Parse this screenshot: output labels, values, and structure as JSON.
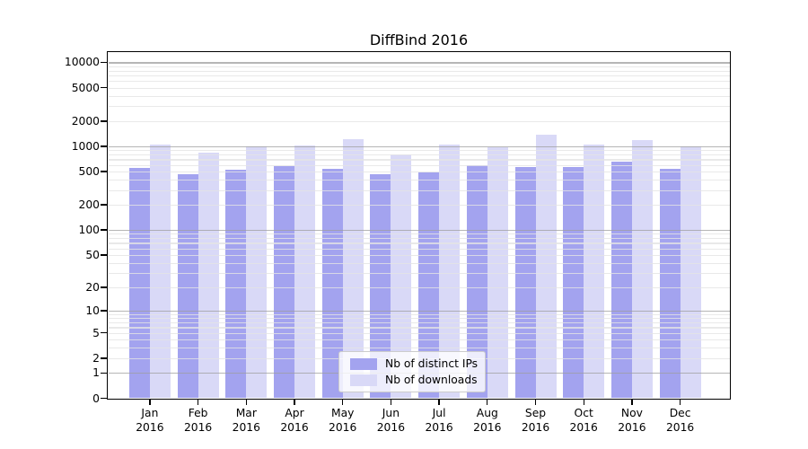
{
  "chart_data": {
    "type": "bar",
    "title": "DiffBind 2016",
    "categories": [
      "Jan",
      "Feb",
      "Mar",
      "Apr",
      "May",
      "Jun",
      "Jul",
      "Aug",
      "Sep",
      "Oct",
      "Nov",
      "Dec"
    ],
    "x_year": "2016",
    "series": [
      {
        "name": "Nb of distinct IPs",
        "color": "#a3a3ef",
        "values": [
          558,
          464,
          521,
          582,
          533,
          464,
          491,
          601,
          565,
          567,
          663,
          541
        ]
      },
      {
        "name": "Nb of downloads",
        "color": "#d9d9f7",
        "values": [
          1045,
          837,
          988,
          1012,
          1209,
          803,
          1052,
          971,
          1370,
          1038,
          1198,
          1002
        ]
      }
    ],
    "xlabel": "",
    "ylabel": "",
    "yscale": "log1p",
    "y_ticks": [
      0,
      1,
      2,
      5,
      10,
      20,
      50,
      100,
      200,
      500,
      1000,
      2000,
      5000,
      10000
    ],
    "ylim": [
      0,
      13200
    ],
    "grid": true,
    "legend": {
      "position": "lower center",
      "labels": [
        "Nb of distinct IPs",
        "Nb of downloads"
      ]
    }
  }
}
